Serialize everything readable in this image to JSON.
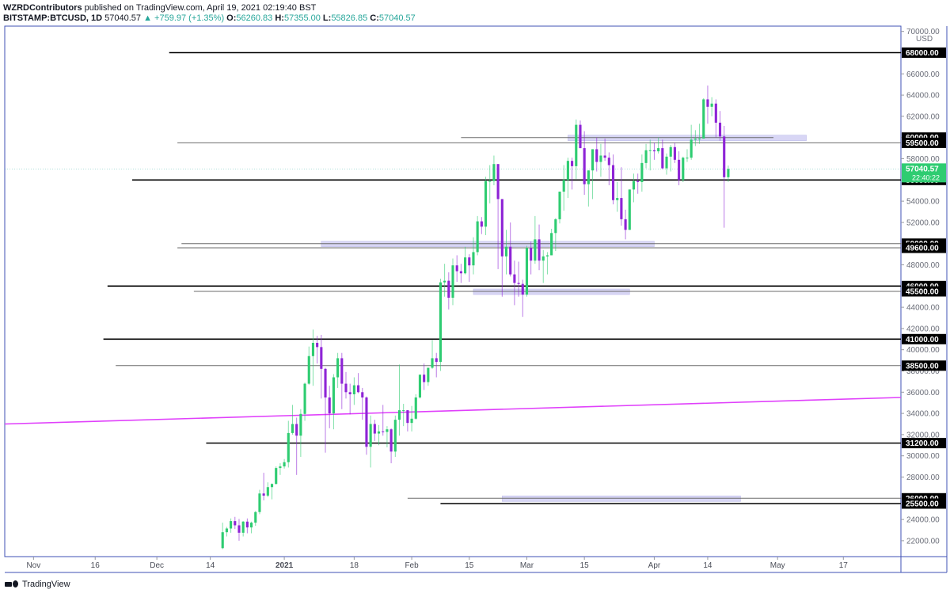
{
  "header": {
    "publisher": "WZRDContributors",
    "published_text": "published on TradingView.com, April 19, 2021 02:19:40 BST",
    "symbol": "BITSTAMP:BTCUSD, 1D",
    "last": "57040.57",
    "change": "▲ +759.97 (+1.35%)",
    "o_label": "O:",
    "o_value": "56260.83",
    "h_label": "H:",
    "h_value": "57355.00",
    "l_label": "L:",
    "l_value": "55826.85",
    "c_label": "C:",
    "c_value": "57040.57"
  },
  "footer": {
    "brand": "TradingView"
  },
  "chart_data": {
    "type": "candlestick",
    "currency": "USD",
    "ylim": [
      20500,
      70500
    ],
    "y_ticks": [
      22000,
      24000,
      26000,
      28000,
      30000,
      32000,
      34000,
      36000,
      38000,
      40000,
      42000,
      44000,
      46000,
      48000,
      50000,
      52000,
      54000,
      56000,
      58000,
      60000,
      62000,
      64000,
      66000,
      68000,
      70000
    ],
    "x_ticks": [
      {
        "label": "Nov",
        "date": "2020-11-01"
      },
      {
        "label": "16",
        "date": "2020-11-16"
      },
      {
        "label": "Dec",
        "date": "2020-12-01"
      },
      {
        "label": "14",
        "date": "2020-12-14"
      },
      {
        "label": "2021",
        "date": "2021-01-01"
      },
      {
        "label": "18",
        "date": "2021-01-18"
      },
      {
        "label": "Feb",
        "date": "2021-02-01"
      },
      {
        "label": "15",
        "date": "2021-02-15"
      },
      {
        "label": "Mar",
        "date": "2021-03-01"
      },
      {
        "label": "15",
        "date": "2021-03-15"
      },
      {
        "label": "Apr",
        "date": "2021-04-01"
      },
      {
        "label": "14",
        "date": "2021-04-14"
      },
      {
        "label": "May",
        "date": "2021-05-01"
      },
      {
        "label": "17",
        "date": "2021-05-17"
      }
    ],
    "x_range": [
      "2020-10-25",
      "2021-05-31"
    ],
    "colors": {
      "up": "#2ecc71",
      "down": "#8e24d6",
      "trend": "#e040fb",
      "zone": "#d8d6f5",
      "axis": "#3f51b5"
    },
    "levels": [
      {
        "value": 68000,
        "label": "68000.00",
        "from": "2020-12-04"
      },
      {
        "value": 60000,
        "label": "60000.00",
        "from": "2021-02-13",
        "to": "2021-04-30",
        "zone_from": "2021-03-11",
        "zone_to": "2021-05-08",
        "style": "thin"
      },
      {
        "value": 59500,
        "label": "59500.00",
        "from": "2020-12-06",
        "style": "thin"
      },
      {
        "value": 56000,
        "label": "56000.00",
        "from": "2020-11-25"
      },
      {
        "value": 50000,
        "label": "50000.00",
        "from": "2020-12-07",
        "zone_from": "2021-01-10",
        "zone_to": "2021-04-01",
        "style": "thin"
      },
      {
        "value": 49600,
        "label": "49600.00",
        "from": "2020-12-06",
        "style": "thin"
      },
      {
        "value": 46000,
        "label": "46000.00",
        "from": "2020-11-19"
      },
      {
        "value": 45500,
        "label": "45500.00",
        "from": "2020-12-10",
        "zone_from": "2021-02-16",
        "zone_to": "2021-03-26",
        "style": "thin"
      },
      {
        "value": 41000,
        "label": "41000.00",
        "from": "2020-11-18"
      },
      {
        "value": 38500,
        "label": "38500.00",
        "from": "2020-11-21",
        "style": "thin"
      },
      {
        "value": 31200,
        "label": "31200.00",
        "from": "2020-12-13"
      },
      {
        "value": 26000,
        "label": "26000.00",
        "from": "2021-01-31",
        "zone_from": "2021-02-23",
        "zone_to": "2021-04-22",
        "style": "thin"
      },
      {
        "value": 25500,
        "label": "25500.00",
        "from": "2021-02-08"
      }
    ],
    "trendline": {
      "from": {
        "date": "2020-10-25",
        "value": 33000
      },
      "to": {
        "date": "2021-05-31",
        "value": 35500
      }
    },
    "last_price": {
      "value": 57040.57,
      "label": "57040.57",
      "countdown": "22:40:22"
    },
    "candles": [
      [
        "2020-12-17",
        21300,
        23700,
        21200,
        22800
      ],
      [
        "2020-12-18",
        22800,
        23300,
        22400,
        23150
      ],
      [
        "2020-12-19",
        23150,
        24100,
        22750,
        23850
      ],
      [
        "2020-12-20",
        23850,
        24250,
        23100,
        23450
      ],
      [
        "2020-12-21",
        23450,
        24050,
        22000,
        22750
      ],
      [
        "2020-12-22",
        22750,
        23850,
        22400,
        23800
      ],
      [
        "2020-12-23",
        23800,
        24100,
        22700,
        23250
      ],
      [
        "2020-12-24",
        23250,
        23800,
        22700,
        23700
      ],
      [
        "2020-12-25",
        23700,
        24800,
        23400,
        24700
      ],
      [
        "2020-12-26",
        24700,
        26800,
        24500,
        26450
      ],
      [
        "2020-12-27",
        26450,
        28400,
        25800,
        26250
      ],
      [
        "2020-12-28",
        26250,
        27500,
        26100,
        27050
      ],
      [
        "2020-12-29",
        27050,
        27400,
        25900,
        27350
      ],
      [
        "2020-12-30",
        27350,
        29000,
        27300,
        28850
      ],
      [
        "2020-12-31",
        28850,
        29300,
        28200,
        29000
      ],
      [
        "2021-01-01",
        29000,
        29700,
        28800,
        29400
      ],
      [
        "2021-01-02",
        29400,
        33300,
        28900,
        32150
      ],
      [
        "2021-01-03",
        32150,
        34800,
        32000,
        33000
      ],
      [
        "2021-01-04",
        33000,
        33600,
        28200,
        31900
      ],
      [
        "2021-01-05",
        31900,
        34400,
        29900,
        33950
      ],
      [
        "2021-01-06",
        33950,
        36900,
        33300,
        36800
      ],
      [
        "2021-01-07",
        36800,
        40300,
        36700,
        39400
      ],
      [
        "2021-01-08",
        39400,
        41900,
        36600,
        40650
      ],
      [
        "2021-01-09",
        40650,
        41300,
        38700,
        40250
      ],
      [
        "2021-01-10",
        40250,
        41400,
        35400,
        38200
      ],
      [
        "2021-01-11",
        38200,
        38300,
        30300,
        35500
      ],
      [
        "2021-01-12",
        35500,
        36600,
        32600,
        34000
      ],
      [
        "2021-01-13",
        34000,
        37700,
        32500,
        37400
      ],
      [
        "2021-01-14",
        37400,
        39700,
        36400,
        39200
      ],
      [
        "2021-01-15",
        39200,
        39700,
        34400,
        36800
      ],
      [
        "2021-01-16",
        36800,
        37900,
        35400,
        36000
      ],
      [
        "2021-01-17",
        36000,
        36800,
        33900,
        35800
      ],
      [
        "2021-01-18",
        35800,
        37400,
        34800,
        36650
      ],
      [
        "2021-01-19",
        36650,
        37800,
        35900,
        36000
      ],
      [
        "2021-01-20",
        36000,
        36400,
        33400,
        35500
      ],
      [
        "2021-01-21",
        35500,
        35600,
        30100,
        30850
      ],
      [
        "2021-01-22",
        30850,
        33800,
        28900,
        33000
      ],
      [
        "2021-01-23",
        33000,
        33400,
        31400,
        32100
      ],
      [
        "2021-01-24",
        32100,
        32900,
        31000,
        32300
      ],
      [
        "2021-01-25",
        32300,
        34800,
        31900,
        32250
      ],
      [
        "2021-01-26",
        32250,
        32800,
        30800,
        32500
      ],
      [
        "2021-01-27",
        32500,
        32600,
        29300,
        30400
      ],
      [
        "2021-01-28",
        30400,
        33800,
        29900,
        33400
      ],
      [
        "2021-01-29",
        33400,
        38600,
        31900,
        34300
      ],
      [
        "2021-01-30",
        34300,
        34900,
        32800,
        34300
      ],
      [
        "2021-01-31",
        34300,
        34300,
        32300,
        33100
      ],
      [
        "2021-02-01",
        33100,
        34700,
        32300,
        33500
      ],
      [
        "2021-02-02",
        33500,
        35800,
        33400,
        35500
      ],
      [
        "2021-02-03",
        35500,
        37600,
        35400,
        37650
      ],
      [
        "2021-02-04",
        37650,
        38700,
        36200,
        36950
      ],
      [
        "2021-02-05",
        36950,
        38300,
        36600,
        38300
      ],
      [
        "2021-02-06",
        38300,
        40900,
        38200,
        39200
      ],
      [
        "2021-02-07",
        39200,
        39700,
        37400,
        38850
      ],
      [
        "2021-02-08",
        38850,
        46700,
        38000,
        46350
      ],
      [
        "2021-02-09",
        46350,
        48100,
        45000,
        46500
      ],
      [
        "2021-02-10",
        46500,
        47300,
        43800,
        44900
      ],
      [
        "2021-02-11",
        44900,
        48600,
        44200,
        47950
      ],
      [
        "2021-02-12",
        47950,
        48900,
        46400,
        47400
      ],
      [
        "2021-02-13",
        47400,
        48100,
        46300,
        47200
      ],
      [
        "2021-02-14",
        47200,
        49700,
        47100,
        48700
      ],
      [
        "2021-02-15",
        48700,
        49000,
        46400,
        47950
      ],
      [
        "2021-02-16",
        47950,
        50600,
        47100,
        49200
      ],
      [
        "2021-02-17",
        49200,
        52600,
        48900,
        52100
      ],
      [
        "2021-02-18",
        52100,
        52500,
        50900,
        51600
      ],
      [
        "2021-02-19",
        51600,
        56300,
        50800,
        55900
      ],
      [
        "2021-02-20",
        55900,
        57400,
        53800,
        55900
      ],
      [
        "2021-02-21",
        55900,
        58300,
        55500,
        57500
      ],
      [
        "2021-02-22",
        57500,
        57500,
        47600,
        54200
      ],
      [
        "2021-02-23",
        54200,
        54200,
        45000,
        48800
      ],
      [
        "2021-02-24",
        48800,
        51300,
        47100,
        49700
      ],
      [
        "2021-02-25",
        49700,
        52000,
        46900,
        47100
      ],
      [
        "2021-02-26",
        47100,
        48400,
        44200,
        46300
      ],
      [
        "2021-02-27",
        46300,
        48300,
        45000,
        46200
      ],
      [
        "2021-02-28",
        46200,
        46600,
        43100,
        45200
      ],
      [
        "2021-03-01",
        45200,
        49800,
        45000,
        49600
      ],
      [
        "2021-03-02",
        49600,
        50200,
        47100,
        48400
      ],
      [
        "2021-03-03",
        48400,
        52600,
        48100,
        50400
      ],
      [
        "2021-03-04",
        50400,
        51800,
        47500,
        48400
      ],
      [
        "2021-03-05",
        48400,
        49400,
        46300,
        48800
      ],
      [
        "2021-03-06",
        48800,
        49200,
        47100,
        48900
      ],
      [
        "2021-03-07",
        48900,
        51400,
        48900,
        51000
      ],
      [
        "2021-03-08",
        51000,
        52400,
        49300,
        52300
      ],
      [
        "2021-03-09",
        52300,
        54900,
        51900,
        54900
      ],
      [
        "2021-03-10",
        54900,
        57400,
        53100,
        56000
      ],
      [
        "2021-03-11",
        56000,
        58100,
        54300,
        57800
      ],
      [
        "2021-03-12",
        57800,
        58100,
        55100,
        57300
      ],
      [
        "2021-03-13",
        57300,
        61700,
        56100,
        61200
      ],
      [
        "2021-03-14",
        61200,
        61600,
        59000,
        59000
      ],
      [
        "2021-03-15",
        59000,
        60600,
        54600,
        55600
      ],
      [
        "2021-03-16",
        55600,
        56900,
        53500,
        56900
      ],
      [
        "2021-03-17",
        56900,
        58900,
        54200,
        58900
      ],
      [
        "2021-03-18",
        58900,
        60000,
        56800,
        57700
      ],
      [
        "2021-03-19",
        57700,
        59400,
        56300,
        58300
      ],
      [
        "2021-03-20",
        58300,
        59900,
        57800,
        58100
      ],
      [
        "2021-03-21",
        58100,
        58600,
        55500,
        57400
      ],
      [
        "2021-03-22",
        57400,
        58400,
        53700,
        54100
      ],
      [
        "2021-03-23",
        54100,
        55800,
        53000,
        54300
      ],
      [
        "2021-03-24",
        54300,
        57200,
        51700,
        52300
      ],
      [
        "2021-03-25",
        52300,
        53200,
        50400,
        51300
      ],
      [
        "2021-03-26",
        51300,
        55100,
        51300,
        55100
      ],
      [
        "2021-03-27",
        55100,
        56600,
        53900,
        55900
      ],
      [
        "2021-03-28",
        55900,
        56600,
        54700,
        55800
      ],
      [
        "2021-03-29",
        55800,
        58400,
        54900,
        57600
      ],
      [
        "2021-03-30",
        57600,
        59400,
        57100,
        58800
      ],
      [
        "2021-03-31",
        58800,
        59800,
        56900,
        58800
      ],
      [
        "2021-04-01",
        58800,
        59500,
        57900,
        58700
      ],
      [
        "2021-04-02",
        58700,
        60000,
        58500,
        59000
      ],
      [
        "2021-04-03",
        59000,
        59800,
        57000,
        57100
      ],
      [
        "2021-04-04",
        57100,
        58500,
        56500,
        58200
      ],
      [
        "2021-04-05",
        58200,
        59300,
        56800,
        59100
      ],
      [
        "2021-04-06",
        59100,
        59500,
        57600,
        57900
      ],
      [
        "2021-04-07",
        57900,
        58700,
        55500,
        56000
      ],
      [
        "2021-04-08",
        56000,
        58200,
        55800,
        58100
      ],
      [
        "2021-04-09",
        58100,
        58900,
        57700,
        58100
      ],
      [
        "2021-04-10",
        58100,
        61200,
        57900,
        59800
      ],
      [
        "2021-04-11",
        59800,
        60700,
        59200,
        59900
      ],
      [
        "2021-04-12",
        59900,
        61300,
        59400,
        59900
      ],
      [
        "2021-04-13",
        59900,
        63700,
        59900,
        63600
      ],
      [
        "2021-04-14",
        63600,
        64900,
        61300,
        62900
      ],
      [
        "2021-04-15",
        62900,
        63800,
        62000,
        63200
      ],
      [
        "2021-04-16",
        63200,
        63600,
        60000,
        61400
      ],
      [
        "2021-04-17",
        61400,
        62500,
        59700,
        60100
      ],
      [
        "2021-04-18",
        60100,
        61100,
        51500,
        56260
      ],
      [
        "2021-04-19",
        56260,
        57355,
        55826,
        57040
      ]
    ]
  }
}
